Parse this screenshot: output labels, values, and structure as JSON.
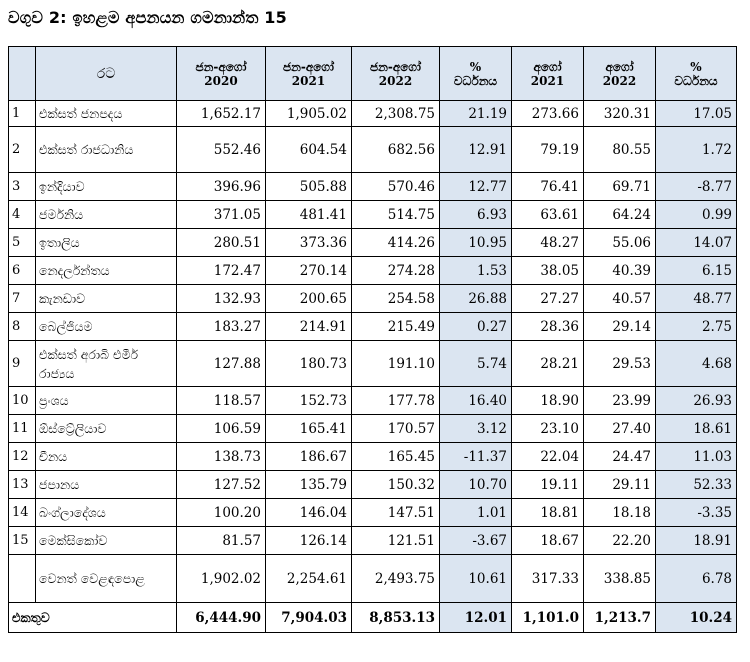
{
  "title": "වගුව 2: ඉහළම අපනයන ගමනාන්ත 15",
  "headers": {
    "country": "රට",
    "col1_label": "ජන-අගෝ",
    "col1_year": "2020",
    "col2_label": "ජන-අගෝ",
    "col2_year": "2021",
    "col3_label": "ජන-අගෝ",
    "col3_year": "2022",
    "col4_label": "%",
    "col4_sub": "වර්ධනය",
    "col5_label": "අගෝ",
    "col5_year": "2021",
    "col6_label": "අගෝ",
    "col6_year": "2022",
    "col7_label": "%",
    "col7_sub": "වර්ධනය"
  },
  "rows": [
    {
      "n": "1",
      "country": "එක්සත් ජනපදය",
      "v": [
        "1,652.17",
        "1,905.02",
        "2,308.75",
        "21.19",
        "273.66",
        "320.31",
        "17.05"
      ]
    },
    {
      "n": "2",
      "country": "එක්සත් රාජධානිය",
      "v": [
        "552.46",
        "604.54",
        "682.56",
        "12.91",
        "79.19",
        "80.55",
        "1.72"
      ]
    },
    {
      "n": "3",
      "country": "ඉන්දියාව",
      "v": [
        "396.96",
        "505.88",
        "570.46",
        "12.77",
        "76.41",
        "69.71",
        "-8.77"
      ]
    },
    {
      "n": "4",
      "country": "ජර්මනිය",
      "v": [
        "371.05",
        "481.41",
        "514.75",
        "6.93",
        "63.61",
        "64.24",
        "0.99"
      ]
    },
    {
      "n": "5",
      "country": "ඉතාලිය",
      "v": [
        "280.51",
        "373.36",
        "414.26",
        "10.95",
        "48.27",
        "55.06",
        "14.07"
      ]
    },
    {
      "n": "6",
      "country": "නෙදර්ලන්තය",
      "v": [
        "172.47",
        "270.14",
        "274.28",
        "1.53",
        "38.05",
        "40.39",
        "6.15"
      ]
    },
    {
      "n": "7",
      "country": "කැනඩාව",
      "v": [
        "132.93",
        "200.65",
        "254.58",
        "26.88",
        "27.27",
        "40.57",
        "48.77"
      ]
    },
    {
      "n": "8",
      "country": "බෙල්ජියම",
      "v": [
        "183.27",
        "214.91",
        "215.49",
        "0.27",
        "28.36",
        "29.14",
        "2.75"
      ]
    },
    {
      "n": "9",
      "country": "එක්සත් අරාබි එමීර් රාජ්‍යය",
      "v": [
        "127.88",
        "180.73",
        "191.10",
        "5.74",
        "28.21",
        "29.53",
        "4.68"
      ]
    },
    {
      "n": "10",
      "country": "ප්‍රංශය",
      "v": [
        "118.57",
        "152.73",
        "177.78",
        "16.40",
        "18.90",
        "23.99",
        "26.93"
      ]
    },
    {
      "n": "11",
      "country": "ඕස්ට්‍රේලියාව",
      "v": [
        "106.59",
        "165.41",
        "170.57",
        "3.12",
        "23.10",
        "27.40",
        "18.61"
      ]
    },
    {
      "n": "12",
      "country": "චීනය",
      "v": [
        "138.73",
        "186.67",
        "165.45",
        "-11.37",
        "22.04",
        "24.47",
        "11.03"
      ]
    },
    {
      "n": "13",
      "country": "ජපානය",
      "v": [
        "127.52",
        "135.79",
        "150.32",
        "10.70",
        "19.11",
        "29.11",
        "52.33"
      ]
    },
    {
      "n": "14",
      "country": "බංග්ලාදේශය",
      "v": [
        "100.20",
        "146.04",
        "147.51",
        "1.01",
        "18.81",
        "18.18",
        "-3.35"
      ]
    },
    {
      "n": "15",
      "country": "මෙක්සිකෝව",
      "v": [
        "81.57",
        "126.14",
        "121.51",
        "-3.67",
        "18.67",
        "22.20",
        "18.91"
      ]
    }
  ],
  "other": {
    "country": "වෙනත් වෙළඳපොළ",
    "v": [
      "1,902.02",
      "2,254.61",
      "2,493.75",
      "10.61",
      "317.33",
      "338.85",
      "6.78"
    ]
  },
  "total": {
    "country": "එකතුව",
    "v": [
      "6,444.90",
      "7,904.03",
      "8,853.13",
      "12.01",
      "1,101.0",
      "1,213.7",
      "10.24"
    ]
  }
}
